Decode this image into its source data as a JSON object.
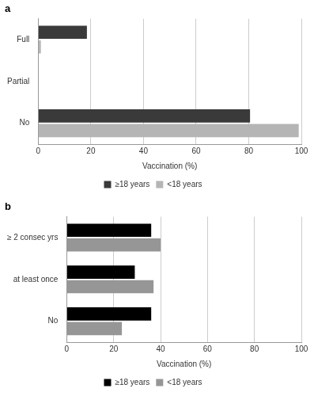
{
  "chart_data": [
    {
      "type": "bar",
      "title": "a",
      "orientation": "horizontal",
      "categories": [
        "Full",
        "Partial",
        "No"
      ],
      "series": [
        {
          "name": "≥18 years",
          "color": "#3a3a3a",
          "values": [
            18.5,
            0,
            80.5
          ]
        },
        {
          "name": "<18 years",
          "color": "#b5b5b5",
          "values": [
            1,
            0,
            99
          ]
        }
      ],
      "x_label": "Vaccination (%)",
      "xlim": [
        0,
        100
      ],
      "xticks": [
        0,
        20,
        40,
        60,
        80,
        100
      ],
      "grid": true,
      "legend": "bottom"
    },
    {
      "type": "bar",
      "title": "b",
      "orientation": "horizontal",
      "categories": [
        "≥ 2 consec yrs",
        "at least once",
        "No"
      ],
      "series": [
        {
          "name": "≥18 years",
          "color": "#000000",
          "values": [
            36,
            29,
            36
          ]
        },
        {
          "name": "<18 years",
          "color": "#969696",
          "values": [
            40,
            37,
            23.5
          ]
        }
      ],
      "x_label": "Vaccination (%)",
      "xlim": [
        0,
        100
      ],
      "xticks": [
        0,
        20,
        40,
        60,
        80,
        100
      ],
      "grid": true,
      "legend": "bottom"
    }
  ]
}
